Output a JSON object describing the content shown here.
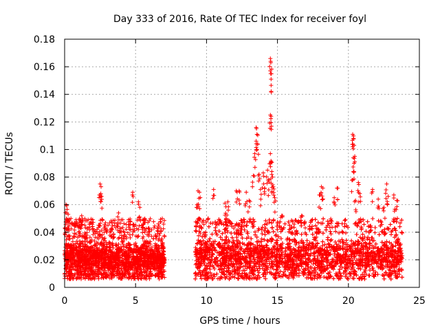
{
  "chart_data": {
    "type": "scatter",
    "title": "Day 333 of 2016, Rate Of TEC Index for receiver foyl",
    "xlabel": "GPS time / hours",
    "ylabel": "ROTI / TECUs",
    "xlim": [
      0,
      25
    ],
    "ylim": [
      0,
      0.18
    ],
    "xticks": [
      0,
      5,
      10,
      15,
      20,
      25
    ],
    "yticks": [
      0,
      0.02,
      0.04,
      0.06,
      0.08,
      0.1,
      0.12,
      0.14,
      0.16,
      0.18
    ],
    "xtick_labels": [
      "0",
      "5",
      "10",
      "15",
      "20",
      "25"
    ],
    "ytick_labels": [
      "0",
      "0.02",
      "0.04",
      "0.06",
      "0.08",
      "0.1",
      "0.12",
      "0.14",
      "0.16",
      "0.18"
    ],
    "grid": true,
    "marker": "+",
    "color": "#ff0000",
    "series": [
      {
        "name": "ROTI",
        "segments": [
          {
            "start": 0.0,
            "end": 7.05,
            "base_low": 0.006,
            "base_high": 0.035,
            "peak_max": 0.05
          },
          {
            "start": 9.2,
            "end": 23.8,
            "base_low": 0.006,
            "base_high": 0.038,
            "peak_max": 0.05
          }
        ],
        "highlights": [
          {
            "x": 0.1,
            "y": 0.06
          },
          {
            "x": 0.15,
            "y": 0.054
          },
          {
            "x": 0.25,
            "y": 0.053
          },
          {
            "x": 1.2,
            "y": 0.052
          },
          {
            "x": 2.5,
            "y": 0.075
          },
          {
            "x": 2.55,
            "y": 0.068
          },
          {
            "x": 2.6,
            "y": 0.066
          },
          {
            "x": 3.8,
            "y": 0.054
          },
          {
            "x": 4.8,
            "y": 0.069
          },
          {
            "x": 5.2,
            "y": 0.062
          },
          {
            "x": 5.3,
            "y": 0.058
          },
          {
            "x": 6.6,
            "y": 0.046
          },
          {
            "x": 9.4,
            "y": 0.07
          },
          {
            "x": 9.5,
            "y": 0.069
          },
          {
            "x": 9.3,
            "y": 0.058
          },
          {
            "x": 10.5,
            "y": 0.071
          },
          {
            "x": 11.3,
            "y": 0.061
          },
          {
            "x": 11.5,
            "y": 0.062
          },
          {
            "x": 12.1,
            "y": 0.07
          },
          {
            "x": 12.3,
            "y": 0.07
          },
          {
            "x": 12.8,
            "y": 0.069
          },
          {
            "x": 13.0,
            "y": 0.063
          },
          {
            "x": 13.3,
            "y": 0.081
          },
          {
            "x": 13.4,
            "y": 0.097
          },
          {
            "x": 13.5,
            "y": 0.116
          },
          {
            "x": 13.55,
            "y": 0.111
          },
          {
            "x": 13.6,
            "y": 0.104
          },
          {
            "x": 13.7,
            "y": 0.082
          },
          {
            "x": 13.8,
            "y": 0.071
          },
          {
            "x": 14.0,
            "y": 0.083
          },
          {
            "x": 14.1,
            "y": 0.072
          },
          {
            "x": 14.3,
            "y": 0.085
          },
          {
            "x": 14.4,
            "y": 0.078
          },
          {
            "x": 14.5,
            "y": 0.166
          },
          {
            "x": 14.52,
            "y": 0.164
          },
          {
            "x": 14.55,
            "y": 0.151
          },
          {
            "x": 14.5,
            "y": 0.125
          },
          {
            "x": 14.55,
            "y": 0.124
          },
          {
            "x": 14.5,
            "y": 0.097
          },
          {
            "x": 14.55,
            "y": 0.091
          },
          {
            "x": 14.6,
            "y": 0.084
          },
          {
            "x": 14.65,
            "y": 0.08
          },
          {
            "x": 14.7,
            "y": 0.073
          },
          {
            "x": 14.8,
            "y": 0.065
          },
          {
            "x": 15.3,
            "y": 0.052
          },
          {
            "x": 16.7,
            "y": 0.052
          },
          {
            "x": 18.1,
            "y": 0.073
          },
          {
            "x": 18.2,
            "y": 0.072
          },
          {
            "x": 18.0,
            "y": 0.067
          },
          {
            "x": 19.2,
            "y": 0.072
          },
          {
            "x": 19.0,
            "y": 0.065
          },
          {
            "x": 20.3,
            "y": 0.111
          },
          {
            "x": 20.35,
            "y": 0.108
          },
          {
            "x": 20.4,
            "y": 0.103
          },
          {
            "x": 20.35,
            "y": 0.094
          },
          {
            "x": 20.4,
            "y": 0.09
          },
          {
            "x": 20.3,
            "y": 0.078
          },
          {
            "x": 20.7,
            "y": 0.076
          },
          {
            "x": 20.8,
            "y": 0.068
          },
          {
            "x": 20.5,
            "y": 0.063
          },
          {
            "x": 21.7,
            "y": 0.071
          },
          {
            "x": 22.1,
            "y": 0.064
          },
          {
            "x": 22.5,
            "y": 0.058
          },
          {
            "x": 22.7,
            "y": 0.075
          },
          {
            "x": 22.8,
            "y": 0.066
          },
          {
            "x": 23.2,
            "y": 0.067
          },
          {
            "x": 23.4,
            "y": 0.063
          }
        ]
      }
    ]
  }
}
